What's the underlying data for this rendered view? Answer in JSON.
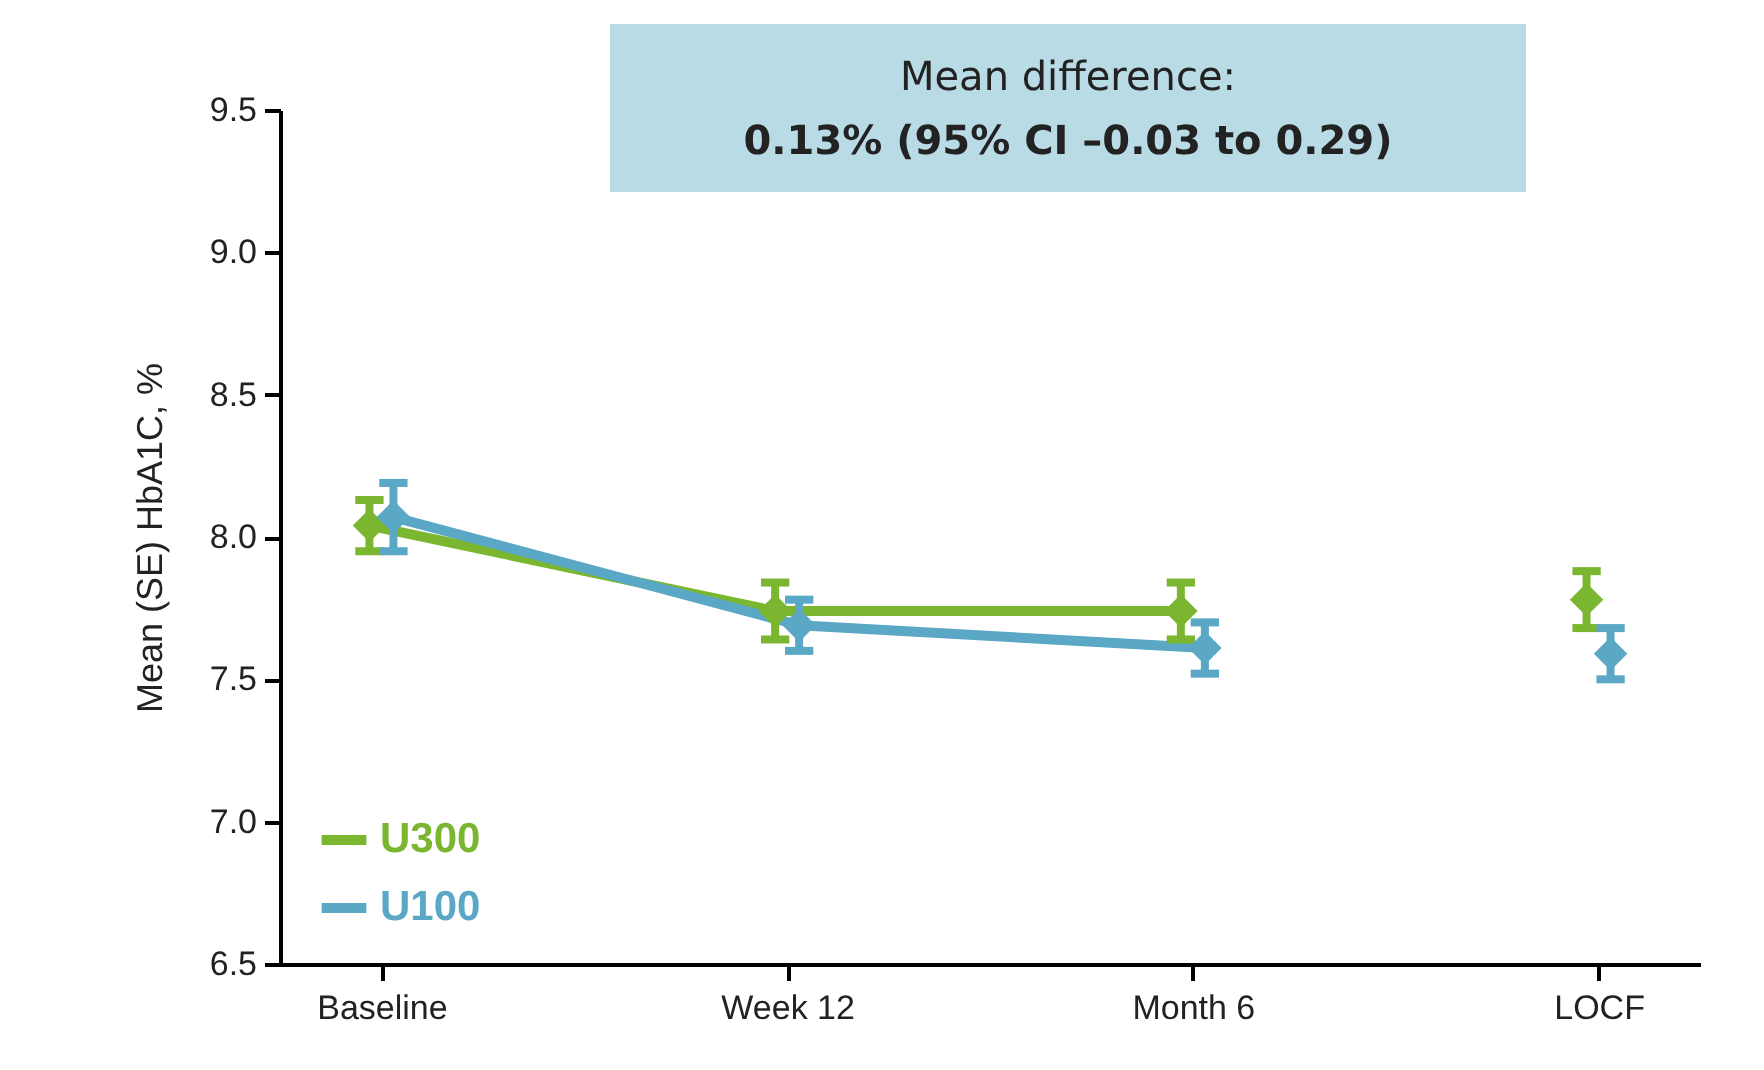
{
  "chart_data": {
    "type": "line",
    "ylabel": "Mean (SE) HbA1C, %",
    "categories": [
      "Baseline",
      "Week 12",
      "Month 6",
      "LOCF"
    ],
    "ylim": [
      6.5,
      9.5
    ],
    "yticks": [
      6.5,
      {
        "value": 7,
        "label": "7.0"
      },
      7.5,
      {
        "value": 8,
        "label": "8.0"
      },
      8.5,
      {
        "value": 9,
        "label": "9.0"
      },
      9.5
    ],
    "grid": false,
    "legend": "bottom left",
    "marker": "diamond",
    "line_style": "solid",
    "annotations": [
      "Mean difference:",
      "0.13% (95% CI –0.03 to 0.29)"
    ],
    "series": [
      {
        "name": "U300",
        "type": "line",
        "color": "#7ab62f",
        "values": [
          8.04,
          7.74,
          7.74,
          null
        ],
        "errors": [
          0.09,
          0.1,
          0.1,
          null
        ]
      },
      {
        "name": "U100",
        "type": "line",
        "color": "#5aa7c6",
        "values": [
          8.07,
          7.69,
          7.61,
          null
        ],
        "errors": [
          0.12,
          0.09,
          0.09,
          null
        ]
      },
      {
        "type": "scatter",
        "color": "#7ab62f",
        "x": [
          "LOCF"
        ],
        "values": [
          7.78
        ],
        "errors": [
          0.1
        ]
      },
      {
        "type": "scatter",
        "color": "#5aa7c6",
        "x": [
          "LOCF"
        ],
        "values": [
          7.59
        ],
        "errors": [
          0.09
        ]
      }
    ]
  }
}
